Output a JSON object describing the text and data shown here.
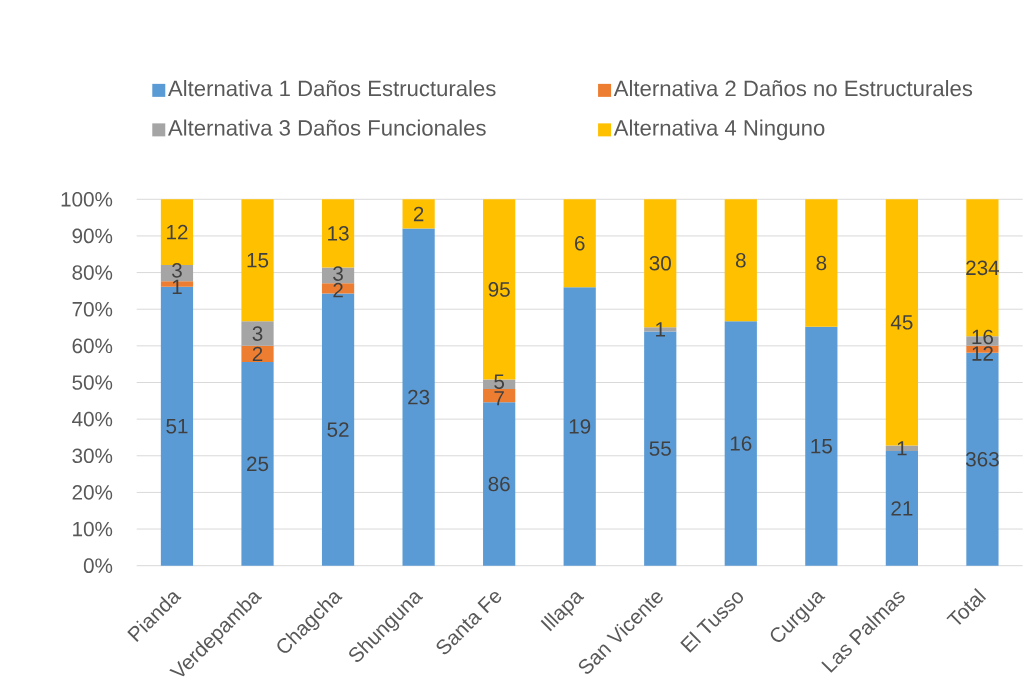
{
  "chart_data": {
    "type": "bar",
    "stacked": true,
    "categories": [
      "Pianda",
      "Verdepamba",
      "Chagcha",
      "Shunguna",
      "Santa Fe",
      "Illapa",
      "San Vicente",
      "El Tusso",
      "Curgua",
      "Las Palmas",
      "Total"
    ],
    "series": [
      {
        "name": "Alternativa 1 Daños Estructurales",
        "color": "#5b9bd5",
        "values": [
          76.1,
          55.6,
          74.3,
          92,
          44.6,
          76,
          63.9,
          66.7,
          65.2,
          31.3,
          58.1
        ]
      },
      {
        "name": "Alternativa 2 Daños no Estructurales",
        "color": "#ed7d31",
        "values": [
          1.5,
          4.4,
          2.8,
          null,
          3.6,
          null,
          null,
          null,
          null,
          null,
          1.9
        ]
      },
      {
        "name": "Alternativa 3 Daños Funcionales",
        "color": "#a5a5a5",
        "values": [
          4.5,
          6.7,
          4.3,
          null,
          2.6,
          null,
          1.2,
          null,
          null,
          1.5,
          2.6
        ]
      },
      {
        "name": "Alternativa 4 Ninguno",
        "color": "#ffc000",
        "values": [
          17.9,
          33.3,
          18.6,
          8,
          49.2,
          24,
          34.9,
          33.3,
          34.8,
          67.2,
          37.4
        ]
      }
    ],
    "annotations": [
      "51",
      "1",
      "3",
      "12",
      "25",
      "2",
      "3",
      "15",
      "52",
      "2",
      "3",
      "13",
      "23",
      "2",
      "86",
      "7",
      "5",
      "95",
      "19",
      "6",
      "55",
      "1",
      "30",
      "16",
      "8",
      "15",
      "8",
      "21",
      "1",
      "45",
      "363",
      "12",
      "16",
      "234"
    ],
    "ylim": [
      0,
      100
    ],
    "yticks": [
      {
        "value": 0,
        "label": "0%"
      },
      {
        "value": 10,
        "label": "10%"
      },
      {
        "value": 20,
        "label": "20%"
      },
      {
        "value": 30,
        "label": "30%"
      },
      {
        "value": 40,
        "label": "40%"
      },
      {
        "value": 50,
        "label": "50%"
      },
      {
        "value": 60,
        "label": "60%"
      },
      {
        "value": 70,
        "label": "70%"
      },
      {
        "value": 80,
        "label": "80%"
      },
      {
        "value": 90,
        "label": "90%"
      },
      {
        "value": 100,
        "label": "100%"
      }
    ],
    "grid": "y",
    "legend": "top"
  }
}
